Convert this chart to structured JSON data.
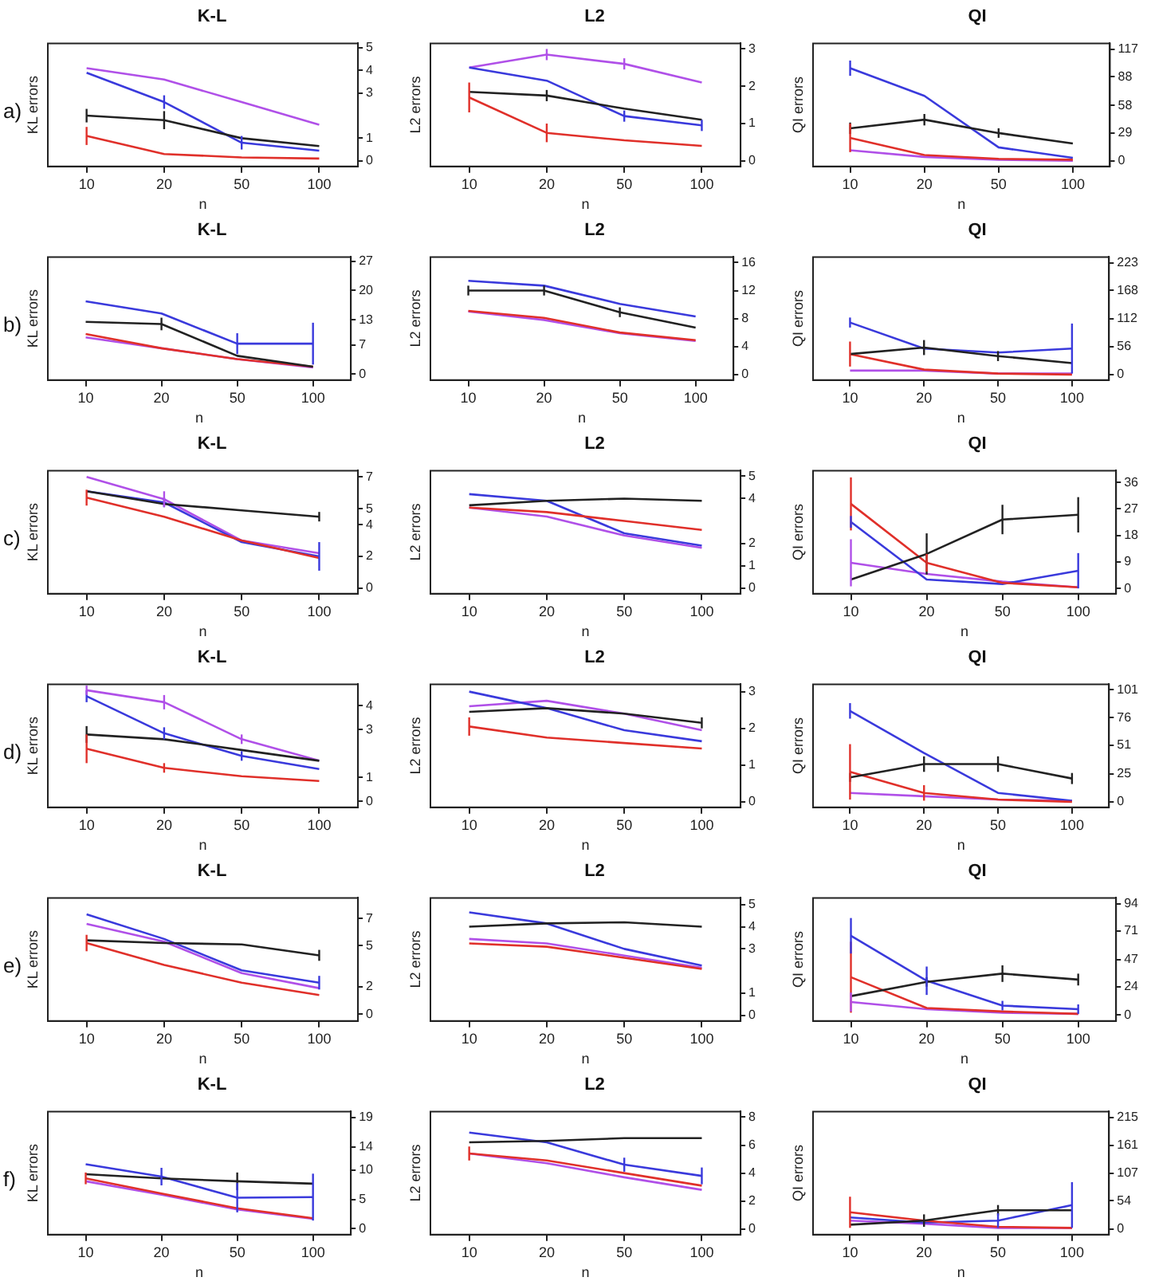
{
  "chart_data": [
    {
      "type": "line",
      "title": "K-L",
      "xlabel": "n",
      "ylabel": "KL errors",
      "annotations": [
        "a)"
      ],
      "categories": [
        "10",
        "20",
        "50",
        "100"
      ],
      "ylim": [
        -0.25,
        5.2
      ],
      "yticks": [
        0,
        1,
        3,
        4,
        5
      ],
      "grid": false,
      "legend": false,
      "marker": "none",
      "series": [
        {
          "color": "#222222",
          "values": [
            2.0,
            1.8,
            1.0,
            0.65
          ],
          "errors": [
            0.3,
            0.4,
            null,
            null
          ]
        },
        {
          "color": "#e0302a",
          "values": [
            1.1,
            0.3,
            0.15,
            0.1
          ],
          "errors": [
            0.4,
            null,
            null,
            null
          ]
        },
        {
          "color": "#3a3adc",
          "values": [
            3.9,
            2.6,
            0.8,
            0.45
          ],
          "errors": [
            null,
            0.3,
            0.3,
            null
          ]
        },
        {
          "color": "#b050e8",
          "values": [
            4.1,
            3.6,
            2.6,
            1.6
          ]
        }
      ]
    },
    {
      "type": "line",
      "title": "L2",
      "xlabel": "n",
      "ylabel": "L2 errors",
      "categories": [
        "10",
        "20",
        "50",
        "100"
      ],
      "ylim": [
        -0.15,
        3.15
      ],
      "yticks": [
        0,
        1,
        2,
        3
      ],
      "grid": false,
      "legend": false,
      "marker": "none",
      "series": [
        {
          "color": "#222222",
          "values": [
            1.85,
            1.75,
            1.4,
            1.1
          ],
          "errors": [
            null,
            0.15,
            null,
            null
          ]
        },
        {
          "color": "#e0302a",
          "values": [
            1.7,
            0.75,
            0.55,
            0.4
          ],
          "errors": [
            0.4,
            0.25,
            null,
            null
          ]
        },
        {
          "color": "#3a3adc",
          "values": [
            2.5,
            2.15,
            1.2,
            0.95
          ],
          "errors": [
            null,
            null,
            0.15,
            0.15
          ]
        },
        {
          "color": "#b050e8",
          "values": [
            2.5,
            2.85,
            2.6,
            2.1
          ],
          "errors": [
            null,
            0.15,
            0.15,
            null
          ]
        }
      ]
    },
    {
      "type": "line",
      "title": "QI",
      "xlabel": "n",
      "ylabel": "QI errors",
      "categories": [
        "10",
        "20",
        "50",
        "100"
      ],
      "ylim": [
        -6,
        123
      ],
      "yticks": [
        0,
        29,
        58,
        88,
        117
      ],
      "grid": false,
      "legend": false,
      "marker": "none",
      "series": [
        {
          "color": "#222222",
          "values": [
            34,
            43,
            29,
            18
          ],
          "errors": [
            6,
            6,
            5,
            null
          ]
        },
        {
          "color": "#e0302a",
          "values": [
            24,
            6,
            2,
            1
          ],
          "errors": [
            15,
            null,
            null,
            null
          ]
        },
        {
          "color": "#3a3adc",
          "values": [
            97,
            68,
            14,
            3
          ],
          "errors": [
            8,
            null,
            null,
            null
          ]
        },
        {
          "color": "#b050e8",
          "values": [
            11,
            4,
            1,
            0
          ]
        }
      ]
    },
    {
      "type": "line",
      "title": "K-L",
      "xlabel": "n",
      "ylabel": "KL errors",
      "annotations": [
        "b)"
      ],
      "categories": [
        "10",
        "20",
        "50",
        "100"
      ],
      "ylim": [
        -1.4,
        28
      ],
      "yticks": [
        0,
        7,
        13,
        20,
        27
      ],
      "grid": false,
      "legend": false,
      "marker": "none",
      "series": [
        {
          "color": "#222222",
          "values": [
            12.5,
            12,
            4.4,
            1.8
          ],
          "errors": [
            null,
            1.5,
            null,
            null
          ]
        },
        {
          "color": "#e0302a",
          "values": [
            9.6,
            6.2,
            3.6,
            1.8
          ]
        },
        {
          "color": "#3a3adc",
          "values": [
            17.4,
            14.5,
            7.3,
            7.3
          ],
          "errors": [
            null,
            null,
            2.5,
            5
          ]
        },
        {
          "color": "#b050e8",
          "values": [
            8.8,
            6.2,
            3.6,
            1.6
          ]
        }
      ]
    },
    {
      "type": "line",
      "title": "L2",
      "xlabel": "n",
      "ylabel": "L2 errors",
      "categories": [
        "10",
        "20",
        "50",
        "100"
      ],
      "ylim": [
        -0.8,
        16.8
      ],
      "yticks": [
        0,
        4,
        8,
        12,
        16
      ],
      "grid": false,
      "legend": false,
      "marker": "none",
      "series": [
        {
          "color": "#222222",
          "values": [
            12,
            12,
            8.9,
            6.7
          ],
          "errors": [
            0.7,
            0.7,
            0.7,
            null
          ]
        },
        {
          "color": "#e0302a",
          "values": [
            9.1,
            8.1,
            6,
            4.9
          ]
        },
        {
          "color": "#3a3adc",
          "values": [
            13.4,
            12.7,
            10.1,
            8.3
          ]
        },
        {
          "color": "#b050e8",
          "values": [
            9.0,
            7.8,
            5.9,
            4.8
          ]
        }
      ]
    },
    {
      "type": "line",
      "title": "QI",
      "xlabel": "n",
      "ylabel": "QI errors",
      "categories": [
        "10",
        "20",
        "50",
        "100"
      ],
      "ylim": [
        -11,
        235
      ],
      "yticks": [
        0,
        56,
        112,
        168,
        223
      ],
      "grid": false,
      "legend": false,
      "marker": "none",
      "series": [
        {
          "color": "#222222",
          "values": [
            41,
            54,
            37,
            23
          ],
          "errors": [
            null,
            15,
            10,
            null
          ]
        },
        {
          "color": "#e0302a",
          "values": [
            41,
            10,
            2,
            0
          ],
          "errors": [
            25,
            null,
            null,
            null
          ]
        },
        {
          "color": "#3a3adc",
          "values": [
            104,
            52,
            44,
            52
          ],
          "errors": [
            10,
            null,
            null,
            50
          ]
        },
        {
          "color": "#b050e8",
          "values": [
            8,
            8,
            2,
            2
          ]
        }
      ]
    },
    {
      "type": "line",
      "title": "K-L",
      "xlabel": "n",
      "ylabel": "KL errors",
      "annotations": [
        "c)"
      ],
      "categories": [
        "10",
        "20",
        "50",
        "100"
      ],
      "ylim": [
        -0.35,
        7.4
      ],
      "yticks": [
        0,
        2,
        4,
        5,
        7
      ],
      "grid": false,
      "legend": false,
      "marker": "none",
      "series": [
        {
          "color": "#222222",
          "values": [
            6.1,
            5.3,
            4.9,
            4.5
          ],
          "errors": [
            null,
            null,
            null,
            0.3
          ]
        },
        {
          "color": "#e0302a",
          "values": [
            5.7,
            4.5,
            3.0,
            1.9
          ],
          "errors": [
            0.5,
            null,
            null,
            null
          ]
        },
        {
          "color": "#3a3adc",
          "values": [
            6.1,
            5.4,
            2.9,
            2.0
          ],
          "errors": [
            null,
            0.3,
            null,
            0.9
          ]
        },
        {
          "color": "#b050e8",
          "values": [
            7.0,
            5.6,
            3.0,
            2.2
          ],
          "errors": [
            null,
            0.5,
            null,
            null
          ]
        }
      ]
    },
    {
      "type": "line",
      "title": "L2",
      "xlabel": "n",
      "ylabel": "L2 errors",
      "categories": [
        "10",
        "20",
        "50",
        "100"
      ],
      "ylim": [
        -0.25,
        5.25
      ],
      "yticks": [
        0,
        1,
        2,
        4,
        5
      ],
      "grid": false,
      "legend": false,
      "marker": "none",
      "series": [
        {
          "color": "#222222",
          "values": [
            3.7,
            3.9,
            4.0,
            3.9
          ]
        },
        {
          "color": "#e0302a",
          "values": [
            3.6,
            3.4,
            3.0,
            2.6
          ]
        },
        {
          "color": "#3a3adc",
          "values": [
            4.2,
            3.9,
            2.45,
            1.9
          ]
        },
        {
          "color": "#b050e8",
          "values": [
            3.6,
            3.2,
            2.35,
            1.8
          ]
        }
      ]
    },
    {
      "type": "line",
      "title": "QI",
      "xlabel": "n",
      "ylabel": "QI errors",
      "categories": [
        "10",
        "20",
        "50",
        "100"
      ],
      "ylim": [
        -1.8,
        40
      ],
      "yticks": [
        0,
        9,
        18,
        27,
        36
      ],
      "grid": false,
      "legend": false,
      "marker": "none",
      "series": [
        {
          "color": "#222222",
          "values": [
            3,
            11.7,
            23.4,
            25
          ],
          "errors": [
            null,
            7,
            5,
            6
          ]
        },
        {
          "color": "#e0302a",
          "values": [
            28.7,
            8.7,
            1.9,
            0.4
          ],
          "errors": [
            9,
            3,
            null,
            null
          ]
        },
        {
          "color": "#3a3adc",
          "values": [
            22.6,
            3,
            1.5,
            6
          ],
          "errors": [
            2,
            null,
            null,
            6
          ]
        },
        {
          "color": "#b050e8",
          "values": [
            8.7,
            4.9,
            2.3,
            0.4
          ],
          "errors": [
            8,
            null,
            null,
            null
          ]
        }
      ]
    },
    {
      "type": "line",
      "title": "K-L",
      "xlabel": "n",
      "ylabel": "KL errors",
      "annotations": [
        "d)"
      ],
      "categories": [
        "10",
        "20",
        "50",
        "100"
      ],
      "ylim": [
        -0.25,
        4.9
      ],
      "yticks": [
        0,
        1,
        3,
        4
      ],
      "grid": false,
      "legend": false,
      "marker": "none",
      "series": [
        {
          "color": "#222222",
          "values": [
            2.8,
            2.6,
            2.15,
            1.7
          ],
          "errors": [
            0.35,
            null,
            null,
            null
          ]
        },
        {
          "color": "#e0302a",
          "values": [
            2.2,
            1.4,
            1.05,
            0.85
          ],
          "errors": [
            0.6,
            0.2,
            null,
            null
          ]
        },
        {
          "color": "#3a3adc",
          "values": [
            4.4,
            2.85,
            1.9,
            1.35
          ],
          "errors": [
            0.25,
            0.25,
            0.2,
            null
          ]
        },
        {
          "color": "#b050e8",
          "values": [
            4.65,
            4.15,
            2.6,
            1.7
          ],
          "errors": [
            0.2,
            0.3,
            0.2,
            null
          ]
        }
      ]
    },
    {
      "type": "line",
      "title": "L2",
      "xlabel": "n",
      "ylabel": "L2 errors",
      "categories": [
        "10",
        "20",
        "50",
        "100"
      ],
      "ylim": [
        -0.15,
        3.2
      ],
      "yticks": [
        0,
        1,
        2,
        3
      ],
      "grid": false,
      "legend": false,
      "marker": "none",
      "series": [
        {
          "color": "#222222",
          "values": [
            2.45,
            2.55,
            2.4,
            2.15
          ],
          "errors": [
            null,
            null,
            null,
            0.15
          ]
        },
        {
          "color": "#e0302a",
          "values": [
            2.05,
            1.75,
            1.6,
            1.45
          ],
          "errors": [
            0.25,
            null,
            null,
            null
          ]
        },
        {
          "color": "#3a3adc",
          "values": [
            3.0,
            2.55,
            1.95,
            1.65
          ]
        },
        {
          "color": "#b050e8",
          "values": [
            2.6,
            2.75,
            2.4,
            1.95
          ]
        }
      ]
    },
    {
      "type": "line",
      "title": "QI",
      "xlabel": "n",
      "ylabel": "QI errors",
      "categories": [
        "10",
        "20",
        "50",
        "100"
      ],
      "ylim": [
        -5,
        106
      ],
      "yticks": [
        0,
        25,
        51,
        76,
        101
      ],
      "grid": false,
      "legend": false,
      "marker": "none",
      "series": [
        {
          "color": "#222222",
          "values": [
            22,
            34,
            34,
            21
          ],
          "errors": [
            4,
            7,
            7,
            5
          ]
        },
        {
          "color": "#e0302a",
          "values": [
            27,
            8,
            2,
            0
          ],
          "errors": [
            25,
            7,
            null,
            null
          ]
        },
        {
          "color": "#3a3adc",
          "values": [
            82,
            44,
            8,
            1
          ],
          "errors": [
            7,
            null,
            null,
            null
          ]
        },
        {
          "color": "#b050e8",
          "values": [
            8,
            5,
            2,
            1
          ]
        }
      ]
    },
    {
      "type": "line",
      "title": "K-L",
      "xlabel": "n",
      "ylabel": "KL errors",
      "annotations": [
        "e)"
      ],
      "categories": [
        "10",
        "20",
        "50",
        "100"
      ],
      "ylim": [
        -0.5,
        8.5
      ],
      "yticks": [
        0,
        2,
        5,
        7
      ],
      "grid": false,
      "legend": false,
      "marker": "none",
      "series": [
        {
          "color": "#222222",
          "values": [
            5.4,
            5.2,
            5.1,
            4.3
          ],
          "errors": [
            null,
            null,
            null,
            0.4
          ]
        },
        {
          "color": "#e0302a",
          "values": [
            5.2,
            3.6,
            2.3,
            1.4
          ],
          "errors": [
            0.6,
            null,
            null,
            null
          ]
        },
        {
          "color": "#3a3adc",
          "values": [
            7.3,
            5.5,
            3.2,
            2.3
          ],
          "errors": [
            null,
            null,
            null,
            0.5
          ]
        },
        {
          "color": "#b050e8",
          "values": [
            6.6,
            5.3,
            3.0,
            1.9
          ]
        }
      ]
    },
    {
      "type": "line",
      "title": "L2",
      "xlabel": "n",
      "ylabel": "L2 errors",
      "categories": [
        "10",
        "20",
        "50",
        "100"
      ],
      "ylim": [
        -0.25,
        5.3
      ],
      "yticks": [
        0,
        1,
        3,
        4,
        5
      ],
      "grid": false,
      "legend": false,
      "marker": "none",
      "series": [
        {
          "color": "#222222",
          "values": [
            4.0,
            4.15,
            4.2,
            4.0
          ]
        },
        {
          "color": "#e0302a",
          "values": [
            3.25,
            3.1,
            2.6,
            2.1
          ]
        },
        {
          "color": "#3a3adc",
          "values": [
            4.65,
            4.15,
            3.0,
            2.25
          ]
        },
        {
          "color": "#b050e8",
          "values": [
            3.45,
            3.25,
            2.7,
            2.15
          ]
        }
      ]
    },
    {
      "type": "line",
      "title": "QI",
      "xlabel": "n",
      "ylabel": "QI errors",
      "categories": [
        "10",
        "20",
        "50",
        "100"
      ],
      "ylim": [
        -5,
        99
      ],
      "yticks": [
        0,
        24,
        47,
        71,
        94
      ],
      "grid": false,
      "legend": false,
      "marker": "none",
      "series": [
        {
          "color": "#222222",
          "values": [
            16,
            28,
            35,
            30
          ],
          "errors": [
            null,
            4,
            7,
            5
          ]
        },
        {
          "color": "#e0302a",
          "values": [
            32,
            6,
            3,
            1
          ],
          "errors": [
            30,
            null,
            null,
            null
          ]
        },
        {
          "color": "#3a3adc",
          "values": [
            67,
            29,
            8,
            5
          ],
          "errors": [
            15,
            12,
            4,
            4
          ]
        },
        {
          "color": "#b050e8",
          "values": [
            11,
            5,
            2,
            1
          ],
          "errors": [
            8,
            null,
            null,
            null
          ]
        }
      ]
    },
    {
      "type": "line",
      "title": "K-L",
      "xlabel": "n",
      "ylabel": "KL errors",
      "annotations": [
        "f)"
      ],
      "categories": [
        "10",
        "20",
        "50",
        "100"
      ],
      "ylim": [
        -1,
        20
      ],
      "yticks": [
        0,
        5,
        10,
        14,
        19
      ],
      "grid": false,
      "legend": false,
      "marker": "none",
      "series": [
        {
          "color": "#222222",
          "values": [
            9.3,
            8.6,
            8.1,
            7.7
          ],
          "errors": [
            null,
            null,
            1.5,
            null
          ]
        },
        {
          "color": "#e0302a",
          "values": [
            8.6,
            6.0,
            3.5,
            1.8
          ],
          "errors": [
            1,
            null,
            null,
            null
          ]
        },
        {
          "color": "#3a3adc",
          "values": [
            11,
            8.9,
            5.3,
            5.4
          ],
          "errors": [
            null,
            1.5,
            2.5,
            4
          ]
        },
        {
          "color": "#b050e8",
          "values": [
            8.1,
            5.8,
            3.3,
            1.7
          ]
        }
      ]
    },
    {
      "type": "line",
      "title": "L2",
      "xlabel": "n",
      "ylabel": "L2 errors",
      "categories": [
        "10",
        "20",
        "50",
        "100"
      ],
      "ylim": [
        -0.4,
        8.4
      ],
      "yticks": [
        0,
        2,
        4,
        6,
        8
      ],
      "grid": false,
      "legend": false,
      "marker": "none",
      "series": [
        {
          "color": "#222222",
          "values": [
            6.2,
            6.3,
            6.5,
            6.5
          ]
        },
        {
          "color": "#e0302a",
          "values": [
            5.4,
            4.9,
            4.0,
            3.1
          ],
          "errors": [
            0.5,
            null,
            null,
            null
          ]
        },
        {
          "color": "#3a3adc",
          "values": [
            6.9,
            6.2,
            4.6,
            3.8
          ],
          "errors": [
            null,
            null,
            0.5,
            0.6
          ]
        },
        {
          "color": "#b050e8",
          "values": [
            5.4,
            4.7,
            3.7,
            2.8
          ]
        }
      ]
    },
    {
      "type": "line",
      "title": "QI",
      "xlabel": "n",
      "ylabel": "QI errors",
      "categories": [
        "10",
        "20",
        "50",
        "100"
      ],
      "ylim": [
        -11,
        226
      ],
      "yticks": [
        0,
        54,
        107,
        161,
        215
      ],
      "grid": false,
      "legend": false,
      "marker": "none",
      "series": [
        {
          "color": "#222222",
          "values": [
            8,
            16,
            36,
            36
          ],
          "errors": [
            null,
            12,
            10,
            null
          ]
        },
        {
          "color": "#e0302a",
          "values": [
            32,
            16,
            4,
            2
          ],
          "errors": [
            30,
            null,
            null,
            null
          ]
        },
        {
          "color": "#3a3adc",
          "values": [
            22,
            12,
            16,
            46
          ],
          "errors": [
            null,
            null,
            14,
            44
          ]
        },
        {
          "color": "#b050e8",
          "values": [
            16,
            10,
            2,
            2
          ]
        }
      ]
    }
  ]
}
